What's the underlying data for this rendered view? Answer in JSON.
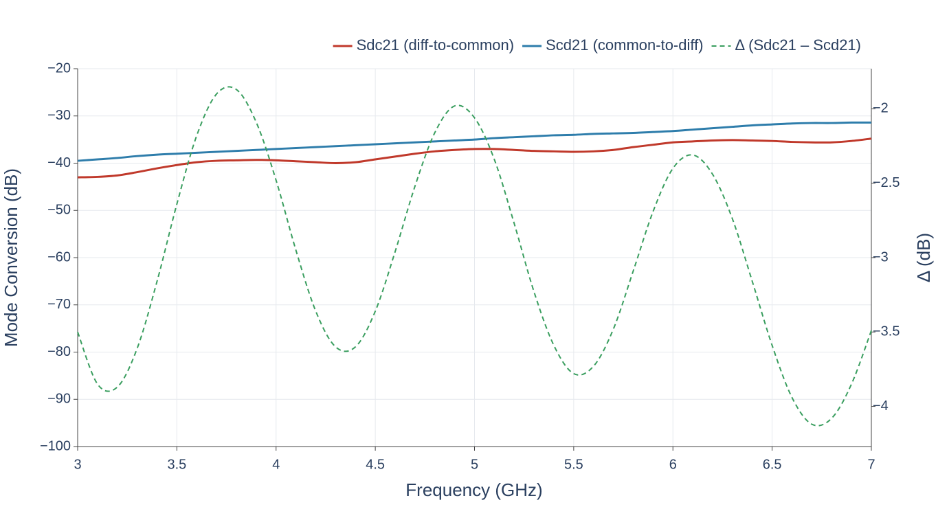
{
  "chart_data": {
    "type": "line",
    "x_label": "Frequency (GHz)",
    "y_label": "Mode Conversion (dB)",
    "y2_label": "Δ (dB)",
    "x": [
      3.0,
      3.1,
      3.2,
      3.3,
      3.4,
      3.5,
      3.6,
      3.7,
      3.8,
      3.9,
      4.0,
      4.1,
      4.2,
      4.3,
      4.4,
      4.5,
      4.6,
      4.7,
      4.8,
      4.9,
      5.0,
      5.1,
      5.2,
      5.3,
      5.4,
      5.5,
      5.6,
      5.7,
      5.8,
      5.9,
      6.0,
      6.1,
      6.2,
      6.3,
      6.4,
      6.5,
      6.6,
      6.7,
      6.8,
      6.9,
      7.0
    ],
    "series": [
      {
        "name": "Sdc21 (diff-to-common)",
        "color": "#c0392b",
        "dash": false,
        "values": [
          -43.0,
          -42.9,
          -42.6,
          -41.9,
          -41.1,
          -40.4,
          -39.8,
          -39.5,
          -39.4,
          -39.3,
          -39.4,
          -39.6,
          -39.8,
          -40.0,
          -39.8,
          -39.2,
          -38.6,
          -38.0,
          -37.5,
          -37.2,
          -37.0,
          -37.0,
          -37.2,
          -37.4,
          -37.5,
          -37.6,
          -37.5,
          -37.2,
          -36.6,
          -36.1,
          -35.6,
          -35.4,
          -35.2,
          -35.1,
          -35.2,
          -35.3,
          -35.5,
          -35.6,
          -35.6,
          -35.3,
          -34.8
        ]
      },
      {
        "name": "Scd21 (common-to-diff)",
        "color": "#2e7dab",
        "dash": false,
        "values": [
          -39.5,
          -39.2,
          -38.9,
          -38.5,
          -38.2,
          -38.0,
          -37.8,
          -37.6,
          -37.4,
          -37.2,
          -37.0,
          -36.8,
          -36.6,
          -36.4,
          -36.2,
          -36.0,
          -35.8,
          -35.6,
          -35.4,
          -35.2,
          -35.0,
          -34.7,
          -34.5,
          -34.3,
          -34.1,
          -34.0,
          -33.8,
          -33.7,
          -33.6,
          -33.4,
          -33.2,
          -32.9,
          -32.6,
          -32.3,
          -32.0,
          -31.8,
          -31.6,
          -31.5,
          -31.5,
          -31.4,
          -31.4
        ]
      },
      {
        "name": "Δ (Sdc21 – Scd21)",
        "color": "#3a9e5f",
        "dash": true,
        "axis": "y2",
        "values": [
          -3.5,
          -3.85,
          -3.87,
          -3.61,
          -3.16,
          -2.64,
          -2.18,
          -1.9,
          -1.87,
          -2.09,
          -2.48,
          -2.95,
          -3.36,
          -3.6,
          -3.6,
          -3.36,
          -2.96,
          -2.52,
          -2.16,
          -1.98,
          -2.06,
          -2.34,
          -2.77,
          -3.23,
          -3.59,
          -3.78,
          -3.73,
          -3.48,
          -3.09,
          -2.69,
          -2.4,
          -2.31,
          -2.44,
          -2.74,
          -3.16,
          -3.59,
          -3.94,
          -4.12,
          -4.08,
          -3.85,
          -3.49
        ]
      }
    ],
    "xlim": [
      3,
      7
    ],
    "xticks": [
      3,
      3.5,
      4,
      4.5,
      5,
      5.5,
      6,
      6.5,
      7
    ],
    "ylim": [
      -100,
      -20
    ],
    "yticks": [
      {
        "value": -20,
        "label": "−20"
      },
      {
        "value": -30,
        "label": "−30"
      },
      {
        "value": -40,
        "label": "−40"
      },
      {
        "value": -50,
        "label": "−50"
      },
      {
        "value": -60,
        "label": "−60"
      },
      {
        "value": -70,
        "label": "−70"
      },
      {
        "value": -80,
        "label": "−80"
      },
      {
        "value": -90,
        "label": "−90"
      },
      {
        "value": -100,
        "label": "−100"
      }
    ],
    "y2lim": [
      -4.27,
      -1.73
    ],
    "y2ticks": [
      {
        "value": -2,
        "label": "−2"
      },
      {
        "value": -2.5,
        "label": "−2.5"
      },
      {
        "value": -3,
        "label": "−3"
      },
      {
        "value": -3.5,
        "label": "−3.5"
      },
      {
        "value": -4,
        "label": "−4"
      }
    ],
    "grid": true,
    "legend": "top-right"
  }
}
